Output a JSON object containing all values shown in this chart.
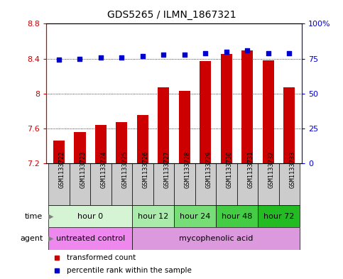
{
  "title": "GDS5265 / ILMN_1867321",
  "samples": [
    "GSM1133722",
    "GSM1133723",
    "GSM1133724",
    "GSM1133725",
    "GSM1133726",
    "GSM1133727",
    "GSM1133728",
    "GSM1133729",
    "GSM1133730",
    "GSM1133731",
    "GSM1133732",
    "GSM1133733"
  ],
  "bar_values": [
    7.46,
    7.56,
    7.64,
    7.67,
    7.75,
    8.07,
    8.03,
    8.37,
    8.45,
    8.49,
    8.38,
    8.07
  ],
  "bar_base": 7.2,
  "percentile_values": [
    74,
    75,
    76,
    76,
    77,
    78,
    78,
    79,
    80,
    81,
    79,
    79
  ],
  "ylim_left": [
    7.2,
    8.8
  ],
  "ylim_right": [
    0,
    100
  ],
  "yticks_left": [
    7.2,
    7.6,
    8.0,
    8.4,
    8.8
  ],
  "ytick_labels_left": [
    "7.2",
    "7.6",
    "8",
    "8.4",
    "8.8"
  ],
  "yticks_right": [
    0,
    25,
    50,
    75,
    100
  ],
  "ytick_labels_right": [
    "0",
    "25",
    "50",
    "75",
    "100%"
  ],
  "bar_color": "#cc0000",
  "dot_color": "#0000cc",
  "bar_width": 0.55,
  "sample_label_bg": "#cccccc",
  "time_groups": [
    {
      "label": "hour 0",
      "start": 0,
      "end": 4,
      "color": "#d4f4d4"
    },
    {
      "label": "hour 12",
      "start": 4,
      "end": 6,
      "color": "#aaeaaa"
    },
    {
      "label": "hour 24",
      "start": 6,
      "end": 8,
      "color": "#77dd77"
    },
    {
      "label": "hour 48",
      "start": 8,
      "end": 10,
      "color": "#44cc44"
    },
    {
      "label": "hour 72",
      "start": 10,
      "end": 12,
      "color": "#22bb22"
    }
  ],
  "agent_groups": [
    {
      "label": "untreated control",
      "start": 0,
      "end": 4,
      "color": "#ee88ee"
    },
    {
      "label": "mycophenolic acid",
      "start": 4,
      "end": 12,
      "color": "#dd99dd"
    }
  ],
  "legend_items": [
    {
      "label": "transformed count",
      "color": "#cc0000"
    },
    {
      "label": "percentile rank within the sample",
      "color": "#0000cc"
    }
  ],
  "tick_label_color_left": "#cc0000",
  "tick_label_color_right": "#0000cc",
  "grid_color": "black",
  "bg_color": "#ffffff"
}
